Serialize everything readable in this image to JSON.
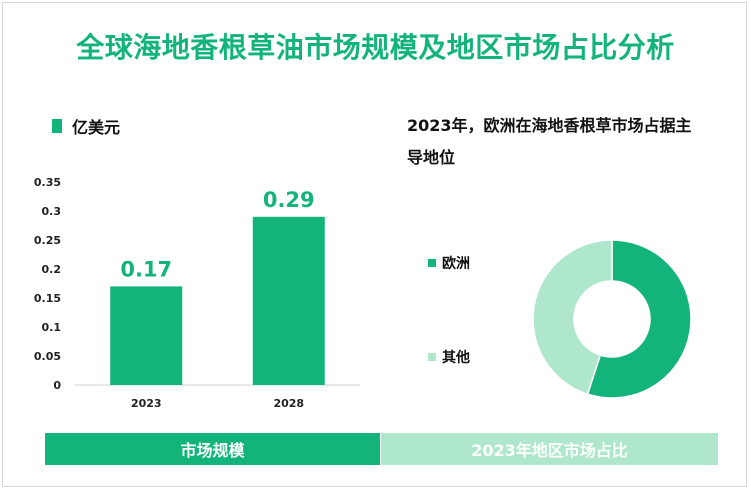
{
  "title": "全球海地香根草油市场规模及地区市场占比分析",
  "colors": {
    "primary": "#12b47a",
    "light": "#aee7cc"
  },
  "chart_data": [
    {
      "type": "bar",
      "legend": "亿美元",
      "categories": [
        "2023",
        "2028"
      ],
      "values": [
        0.17,
        0.29
      ],
      "data_labels": [
        "0.17",
        "0.29"
      ],
      "yticks": [
        "0",
        "0.05",
        "0.1",
        "0.15",
        "0.2",
        "0.25",
        "0.3",
        "0.35"
      ],
      "ylim": [
        0,
        0.35
      ]
    },
    {
      "type": "pie",
      "title": "2023年，欧洲在海地香根草市场占据主导地位",
      "labels": [
        "欧洲",
        "其他"
      ],
      "values": [
        55,
        45
      ]
    }
  ],
  "footer": {
    "left": "市场规模",
    "right": "2023年地区市场占比"
  }
}
